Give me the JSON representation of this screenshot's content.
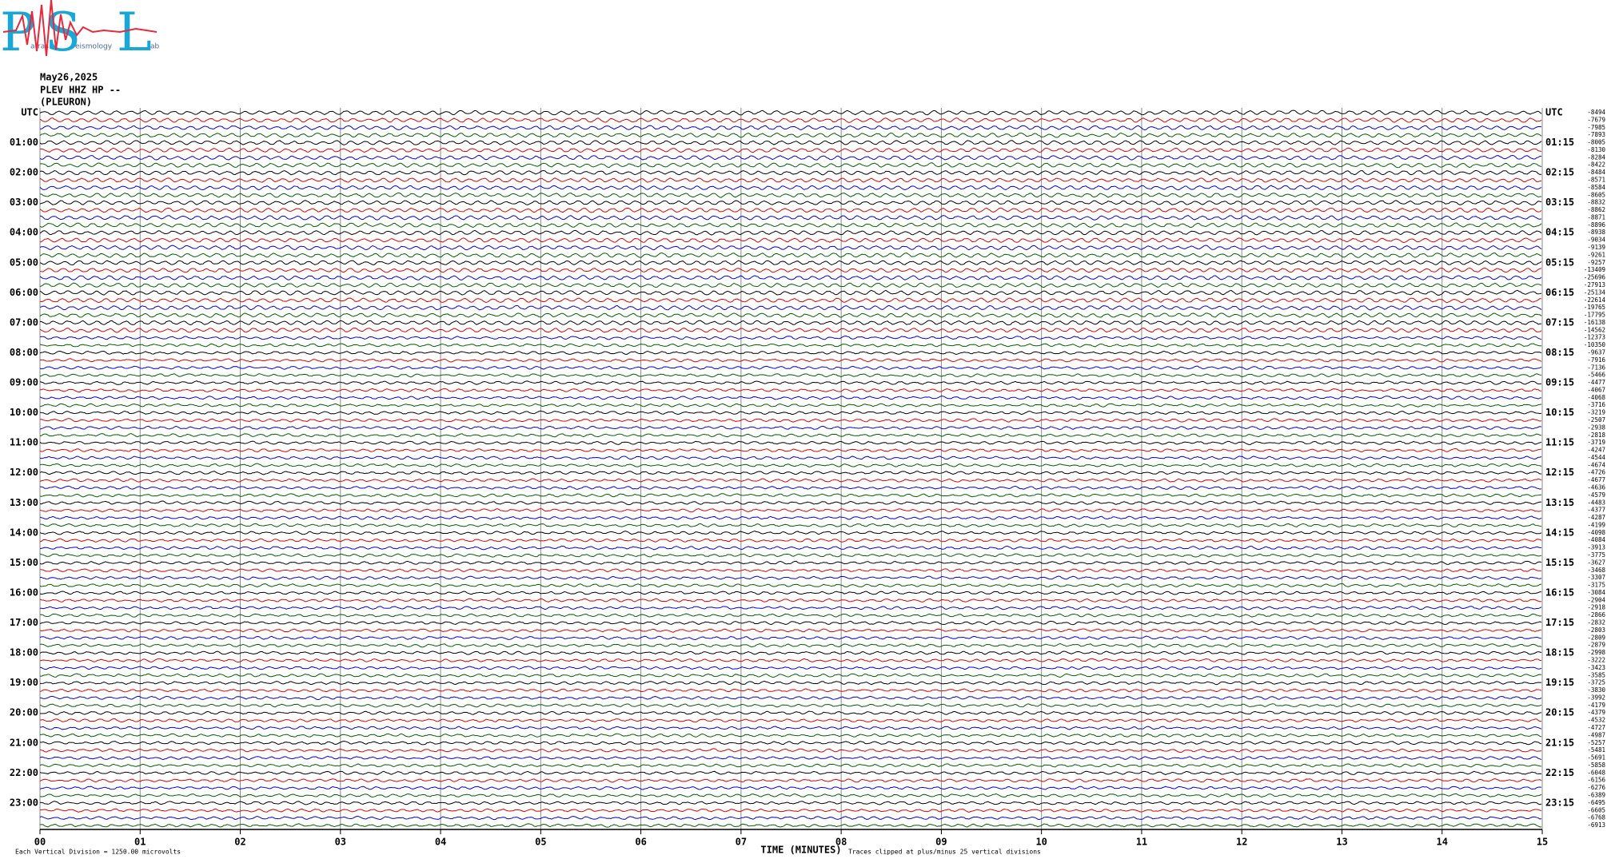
{
  "logo": {
    "letters": [
      "P",
      "S",
      "L"
    ],
    "small": [
      "atras",
      "eismology",
      "ab"
    ]
  },
  "chart_data": {
    "type": "helicorder",
    "date": "May26,2025",
    "station": "PLEV HHZ HP --",
    "site": "(PLEURON)",
    "xlabel": "TIME (MINUTES)",
    "scale_note": "Each Vertical Division = 1250.00 microvolts",
    "clip_note": "Traces clipped at plus/minus 25 vertical divisions",
    "xlim": [
      0,
      15
    ],
    "xticks": [
      {
        "value": 0,
        "label": "00"
      },
      {
        "value": 1,
        "label": "01"
      },
      {
        "value": 2,
        "label": "02"
      },
      {
        "value": 3,
        "label": "03"
      },
      {
        "value": 4,
        "label": "04"
      },
      {
        "value": 5,
        "label": "05"
      },
      {
        "value": 6,
        "label": "06"
      },
      {
        "value": 7,
        "label": "07"
      },
      {
        "value": 8,
        "label": "08"
      },
      {
        "value": 9,
        "label": "09"
      },
      {
        "value": 10,
        "label": "10"
      },
      {
        "value": 11,
        "label": "11"
      },
      {
        "value": 12,
        "label": "12"
      },
      {
        "value": 13,
        "label": "13"
      },
      {
        "value": 14,
        "label": "14"
      },
      {
        "value": 15,
        "label": "15"
      }
    ],
    "grid": true,
    "trace_colors": [
      "#000000",
      "#e00000",
      "#0000e0",
      "#006000"
    ],
    "left_labels": [
      "UTC",
      "01:00",
      "02:00",
      "03:00",
      "04:00",
      "05:00",
      "06:00",
      "07:00",
      "08:00",
      "09:00",
      "10:00",
      "11:00",
      "12:00",
      "13:00",
      "14:00",
      "15:00",
      "16:00",
      "17:00",
      "18:00",
      "19:00",
      "20:00",
      "21:00",
      "22:00",
      "23:00"
    ],
    "right_labels": [
      "UTC",
      "01:15",
      "02:15",
      "03:15",
      "04:15",
      "05:15",
      "06:15",
      "07:15",
      "08:15",
      "09:15",
      "10:15",
      "11:15",
      "12:15",
      "13:15",
      "14:15",
      "15:15",
      "16:15",
      "17:15",
      "18:15",
      "19:15",
      "20:15",
      "21:15",
      "22:15",
      "23:15"
    ],
    "trace_offsets": [
      -8494,
      -7679,
      -7985,
      -7893,
      -8005,
      -8130,
      -8284,
      -8422,
      -8484,
      -8571,
      -8584,
      -8605,
      -8832,
      -8862,
      -8871,
      -8896,
      -8938,
      -9034,
      -9139,
      -9261,
      -9257,
      -13409,
      -25696,
      -27913,
      -25134,
      -22614,
      -19765,
      -17795,
      -16138,
      -14562,
      -12373,
      -10350,
      -9637,
      -7916,
      -7136,
      -5466,
      -4477,
      -4067,
      -4068,
      -3716,
      -3219,
      -2507,
      -2938,
      -2818,
      -3719,
      -4247,
      -4544,
      -4674,
      -4726,
      -4677,
      -4636,
      -4579,
      -4483,
      -4377,
      -4287,
      -4199,
      -4098,
      -4084,
      -3913,
      -3775,
      -3627,
      -3468,
      -3307,
      -3175,
      -3084,
      -2904,
      -2918,
      -2866,
      -2832,
      -2803,
      -2809,
      -2879,
      -2998,
      -3222,
      -3423,
      -3585,
      -3725,
      -3830,
      -3992,
      -4179,
      -4379,
      -4532,
      -4727,
      -4987,
      -5257,
      -5481,
      -5691,
      -5858,
      -6048,
      -6156,
      -6276,
      -6389,
      -6495,
      -6605,
      -6768,
      -6913
    ]
  }
}
